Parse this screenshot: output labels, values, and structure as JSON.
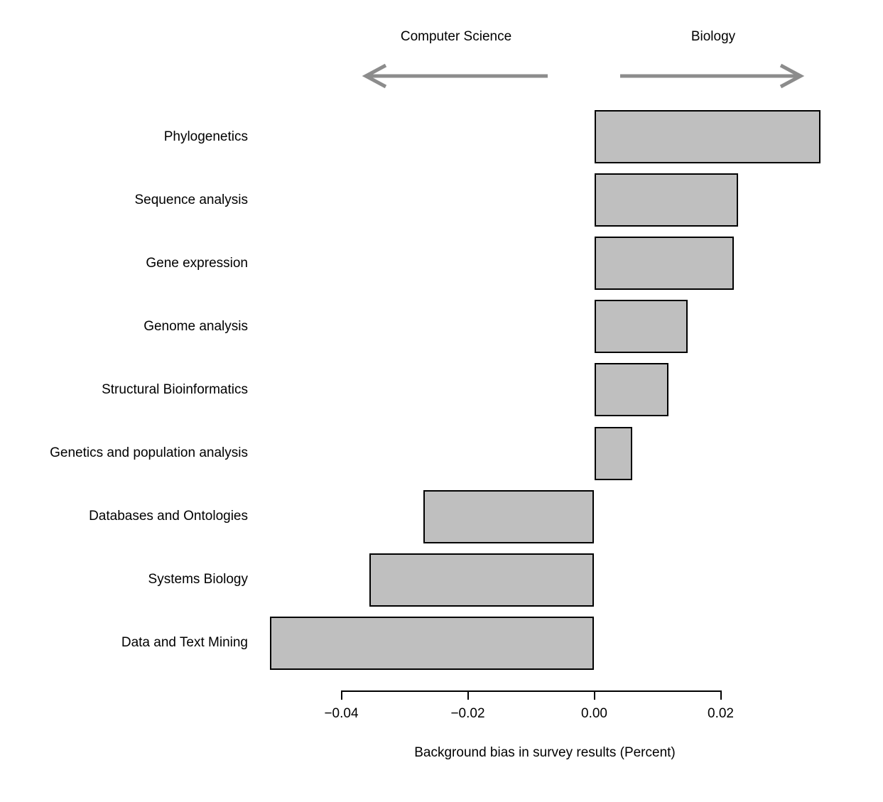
{
  "chart_data": {
    "type": "bar",
    "orientation": "horizontal",
    "title": "",
    "xlabel": "Background bias in survey results (Percent)",
    "group_labels": {
      "left": "Computer Science",
      "right": "Biology"
    },
    "categories": [
      "Phylogenetics",
      "Sequence analysis",
      "Gene expression",
      "Genome analysis",
      "Structural Bioinformatics",
      "Genetics and population analysis",
      "Databases and Ontologies",
      "Systems Biology",
      "Data and Text Mining"
    ],
    "values": [
      0.0358,
      0.0228,
      0.0221,
      0.0148,
      0.0117,
      0.006,
      -0.027,
      -0.0356,
      -0.0513
    ],
    "x_ticks": [
      -0.04,
      -0.02,
      0,
      0.02
    ],
    "x_tick_labels": [
      "−0.04",
      "−0.02",
      "0.00",
      "0.02"
    ],
    "xlim": [
      -0.052,
      0.037
    ],
    "grid": false,
    "legend": false,
    "bar_fill_color": "#bfbfbf",
    "bar_border_color": "#000000",
    "arrow_color": "#8c8c8c",
    "text_color": "#000000"
  }
}
